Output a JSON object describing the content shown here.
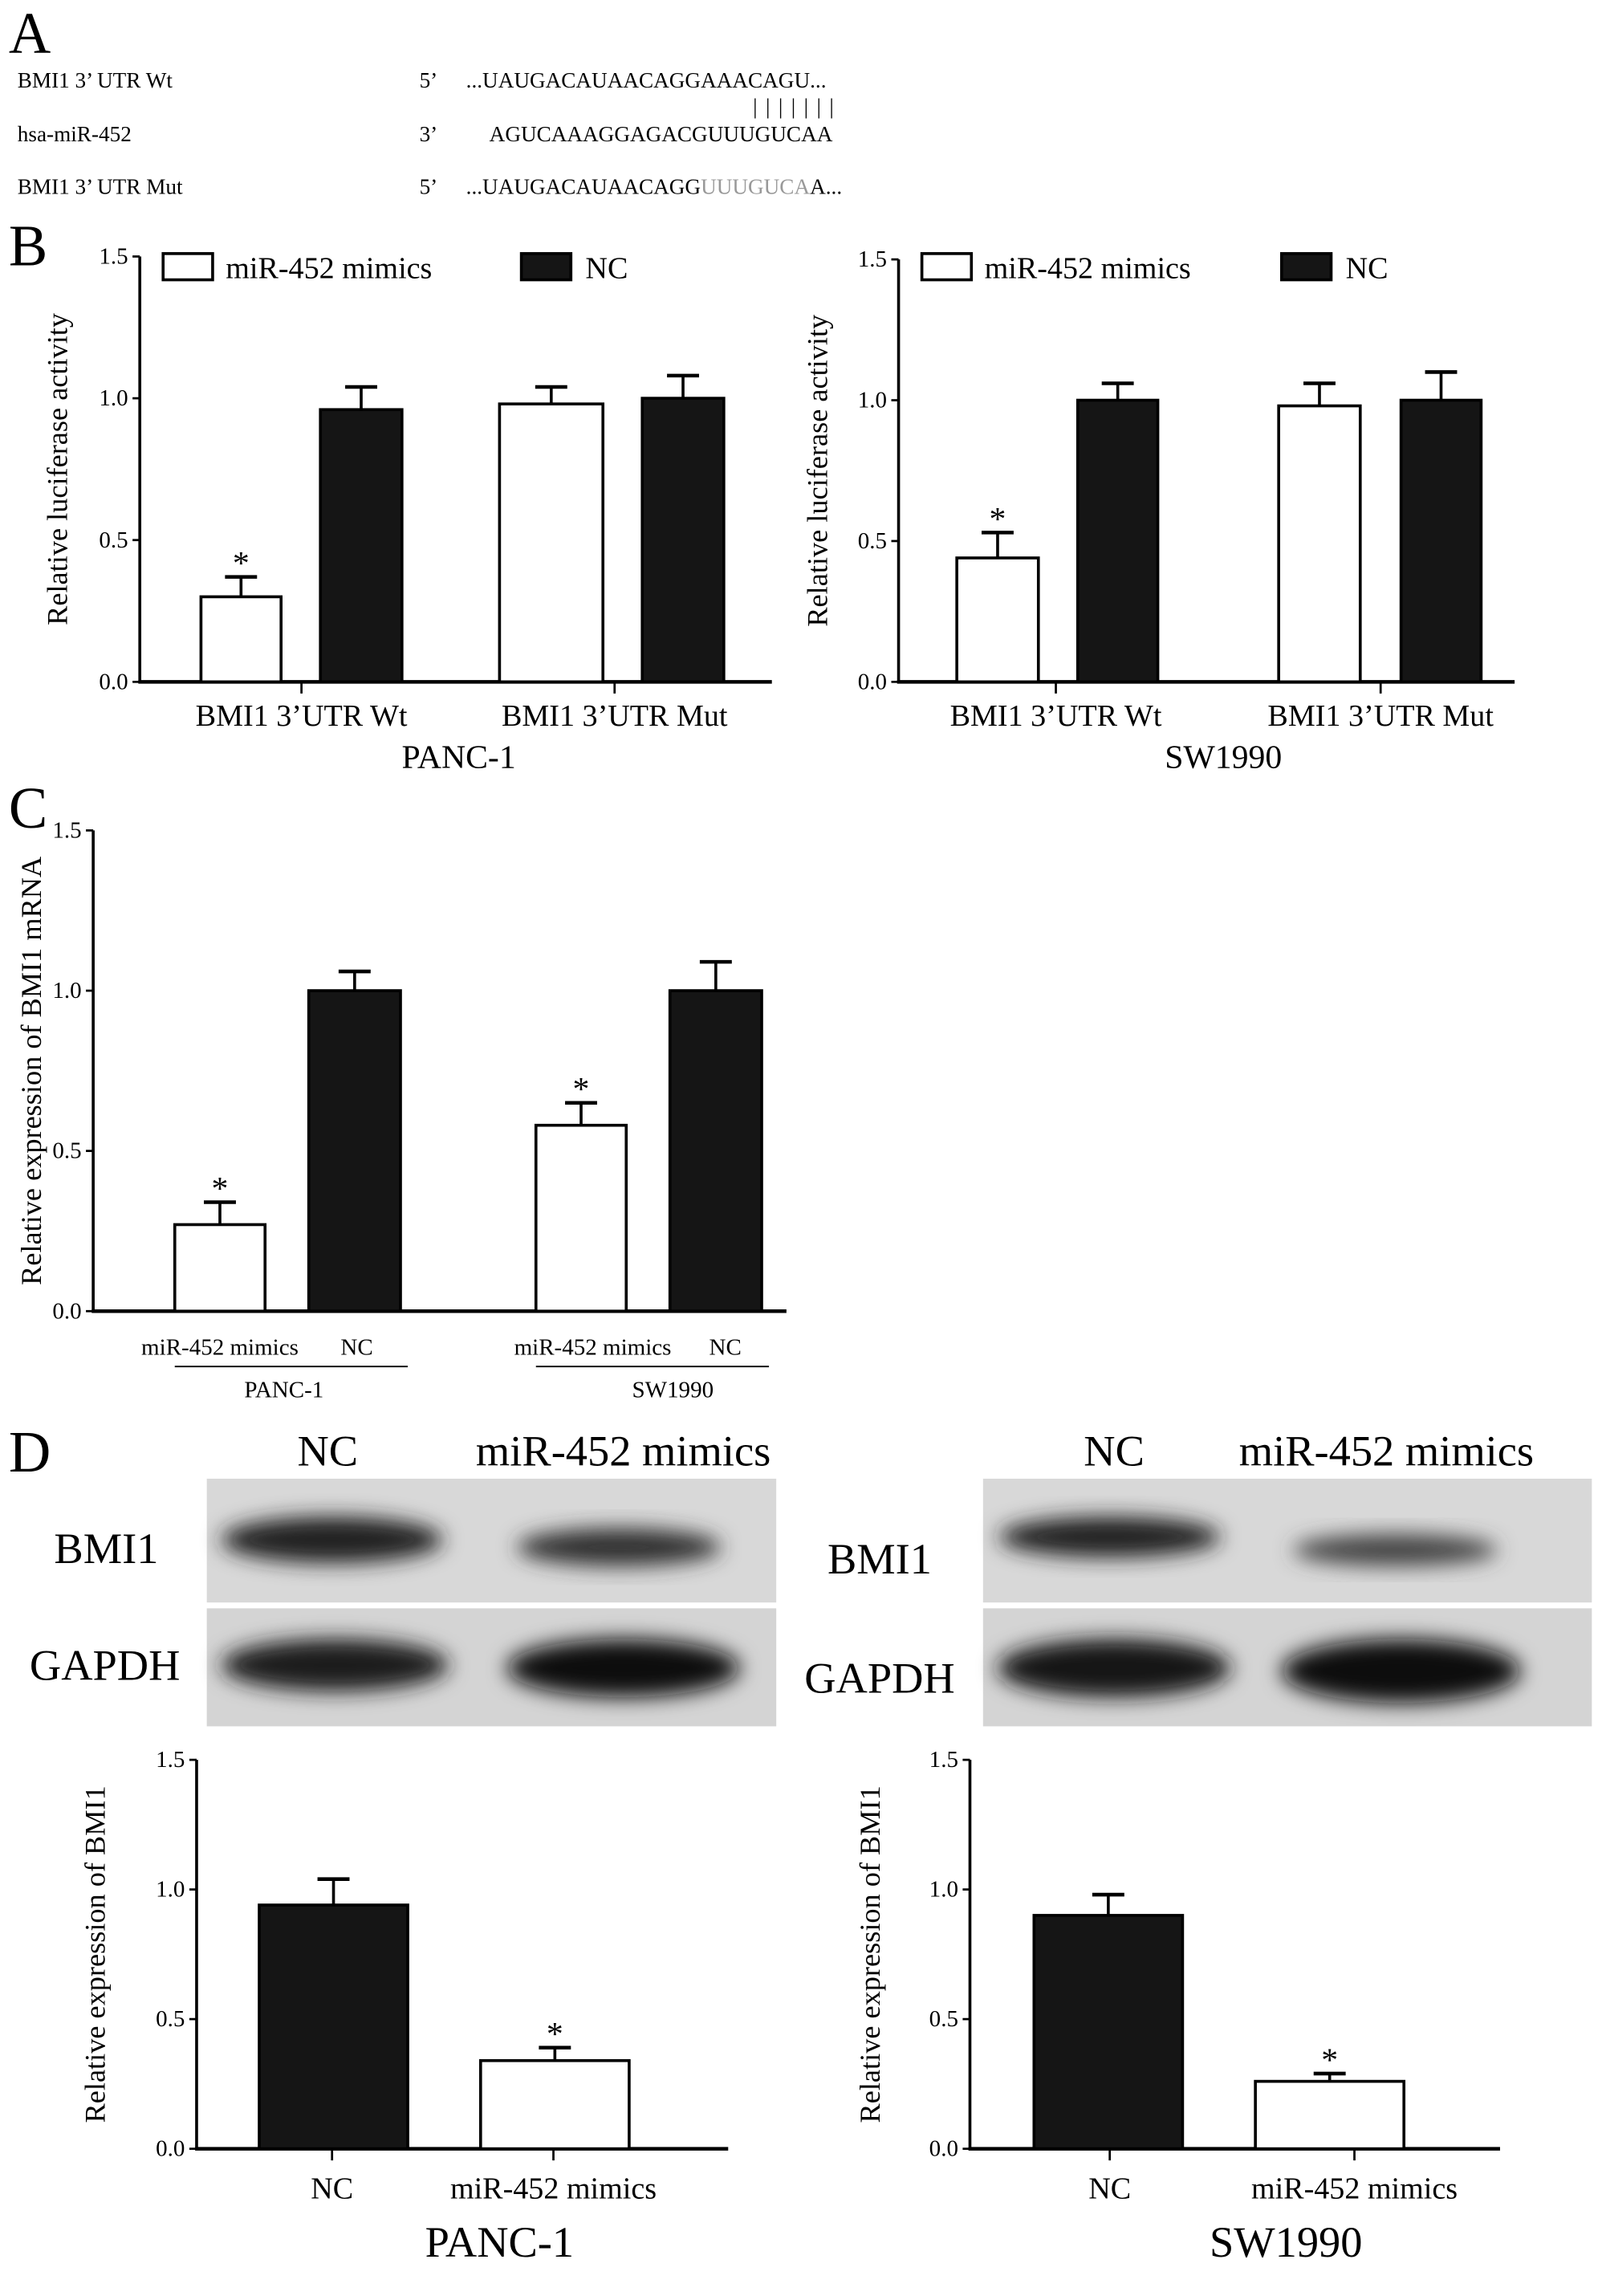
{
  "panel_labels": {
    "a": "A",
    "b": "B",
    "c": "C",
    "d": "D"
  },
  "panel_a": {
    "rows": [
      {
        "name": "BMI1 3’ UTR Wt",
        "end": "5’",
        "seq": "...UAUGACAUAACAGGAAACAGU..."
      },
      {
        "name": "hsa-miR-452",
        "end": "3’",
        "seq": "AGUCAAAGGAGACGUUUGUCAA"
      },
      {
        "name": "BMI1 3’ UTR Mut",
        "end": "5’",
        "seq_prefix": "...UAUGACAUAACAGG",
        "seq_mutated": "UUUGUCA",
        "seq_suffix": "A..."
      }
    ],
    "pairing_marks": "| | | | | | |",
    "mutated_color": "#999999"
  },
  "blots": {
    "left": {
      "lanes": [
        "NC",
        "miR-452 mimics"
      ],
      "rows": [
        "BMI1",
        "GAPDH"
      ]
    },
    "right": {
      "lanes": [
        "NC",
        "miR-452 mimics"
      ],
      "rows": [
        "BMI1",
        "GAPDH"
      ]
    }
  },
  "colors": {
    "mimics": "#ffffff",
    "nc": "#151515",
    "axis": "#000000"
  },
  "chart_data": [
    {
      "id": "B-PANC-1",
      "type": "bar",
      "title": "PANC-1",
      "ylabel": "Relative luciferase activity",
      "ylim": [
        0,
        1.5
      ],
      "yticks": [
        "0.0",
        "0.5",
        "1.0",
        "1.5"
      ],
      "categories": [
        "BMI1 3’UTR Wt",
        "BMI1 3’UTR Mut"
      ],
      "series": [
        {
          "name": "miR-452 mimics",
          "color": "#ffffff",
          "values": [
            0.3,
            0.98
          ],
          "errors": [
            0.07,
            0.06
          ],
          "significant": [
            true,
            false
          ]
        },
        {
          "name": "NC",
          "color": "#151515",
          "values": [
            0.96,
            1.0
          ],
          "errors": [
            0.08,
            0.08
          ],
          "significant": [
            false,
            false
          ]
        }
      ],
      "legend": "top",
      "grid": false
    },
    {
      "id": "B-SW1990",
      "type": "bar",
      "title": "SW1990",
      "ylabel": "Relative luciferase activity",
      "ylim": [
        0,
        1.5
      ],
      "yticks": [
        "0.0",
        "0.5",
        "1.0",
        "1.5"
      ],
      "categories": [
        "BMI1 3’UTR Wt",
        "BMI1 3’UTR Mut"
      ],
      "series": [
        {
          "name": "miR-452 mimics",
          "color": "#ffffff",
          "values": [
            0.44,
            0.98
          ],
          "errors": [
            0.09,
            0.08
          ],
          "significant": [
            true,
            false
          ]
        },
        {
          "name": "NC",
          "color": "#151515",
          "values": [
            1.0,
            1.0
          ],
          "errors": [
            0.06,
            0.1
          ],
          "significant": [
            false,
            false
          ]
        }
      ],
      "legend": "top",
      "grid": false
    },
    {
      "id": "C",
      "type": "bar",
      "ylabel": "Relative expression of BMI1 mRNA",
      "ylim": [
        0,
        1.5
      ],
      "yticks": [
        "0.0",
        "0.5",
        "1.0",
        "1.5"
      ],
      "categories": [
        "PANC-1",
        "SW1990"
      ],
      "sub_labels": [
        "miR-452 mimics",
        "NC"
      ],
      "series": [
        {
          "color": "#ffffff",
          "values": [
            0.27,
            0.58
          ],
          "errors": [
            0.07,
            0.07
          ],
          "significant": [
            true,
            true
          ]
        },
        {
          "color": "#151515",
          "values": [
            1.0,
            1.0
          ],
          "errors": [
            0.06,
            0.09
          ],
          "significant": [
            false,
            false
          ]
        }
      ],
      "grid": false
    },
    {
      "id": "D-PANC-1",
      "type": "bar",
      "title": "PANC-1",
      "ylabel": "Relative expression of BMI1",
      "ylim": [
        0,
        1.5
      ],
      "yticks": [
        "0.0",
        "0.5",
        "1.0",
        "1.5"
      ],
      "categories": [
        "NC",
        "miR-452 mimics"
      ],
      "values": [
        0.94,
        0.34
      ],
      "errors": [
        0.1,
        0.05
      ],
      "significant": [
        false,
        true
      ],
      "bar_colors": [
        "#151515",
        "#ffffff"
      ],
      "grid": false
    },
    {
      "id": "D-SW1990",
      "type": "bar",
      "title": "SW1990",
      "ylabel": "Relative expression of BMI1",
      "ylim": [
        0,
        1.5
      ],
      "yticks": [
        "0.0",
        "0.5",
        "1.0",
        "1.5"
      ],
      "categories": [
        "NC",
        "miR-452 mimics"
      ],
      "values": [
        0.9,
        0.26
      ],
      "errors": [
        0.08,
        0.03
      ],
      "significant": [
        false,
        true
      ],
      "bar_colors": [
        "#151515",
        "#ffffff"
      ],
      "grid": false
    }
  ],
  "significance_mark": "*"
}
